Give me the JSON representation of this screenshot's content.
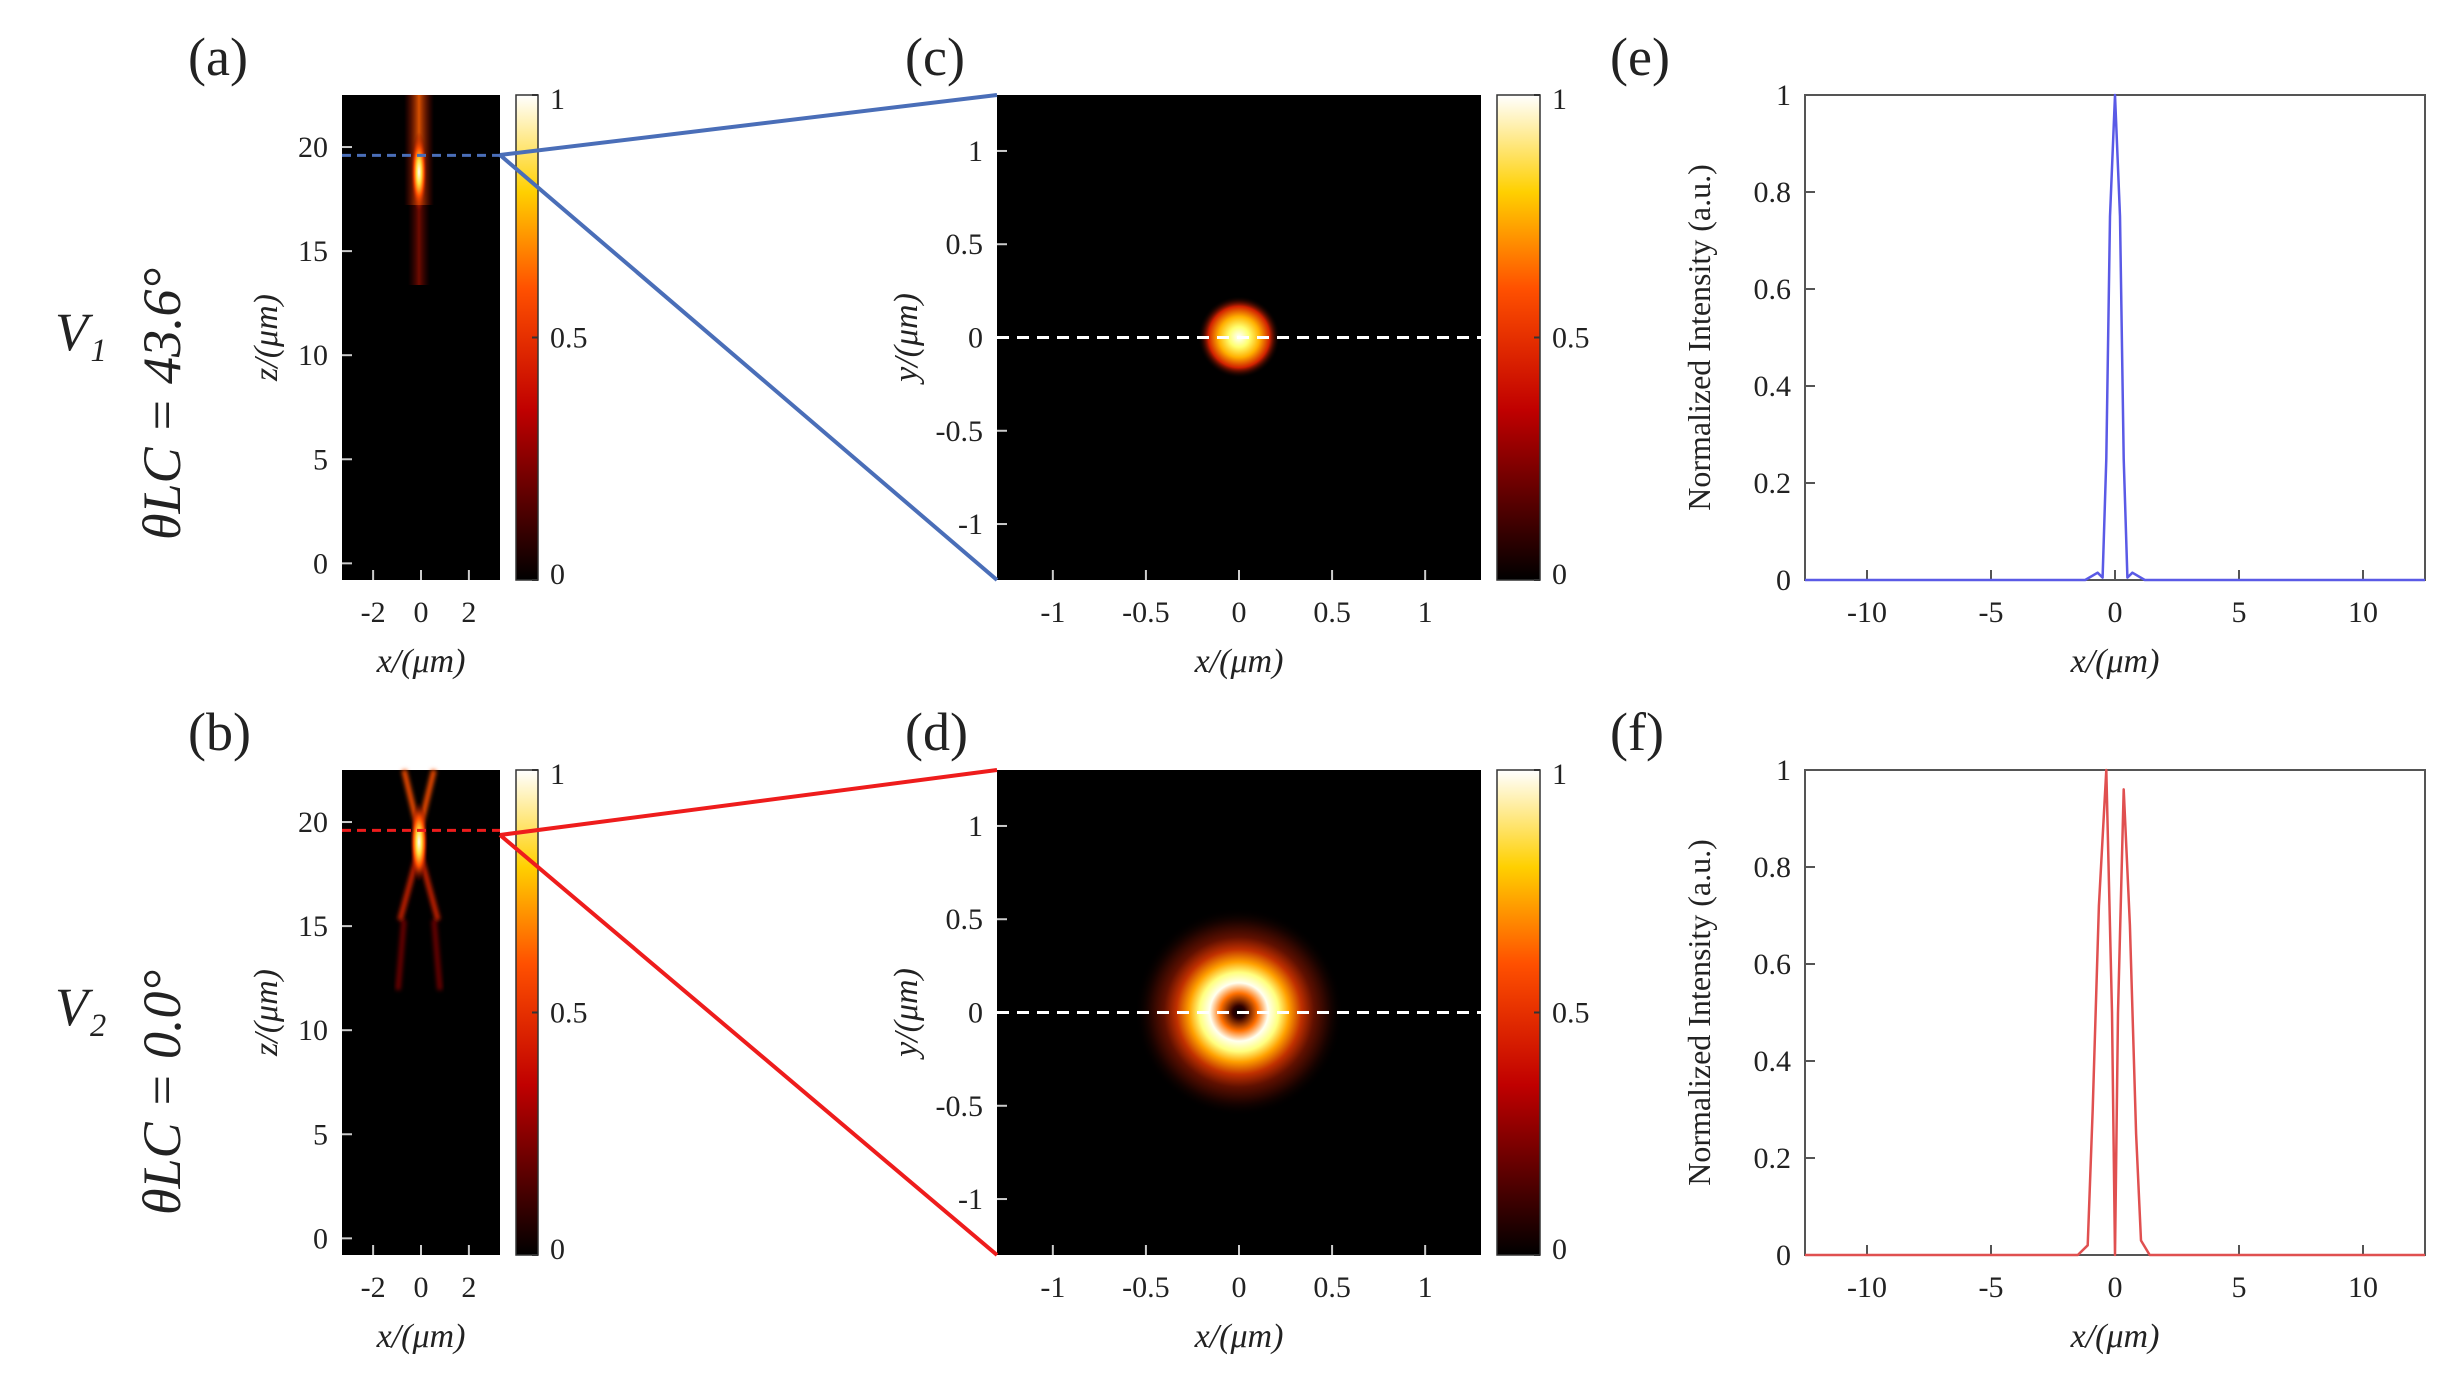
{
  "figure": {
    "rows": [
      {
        "label": "V₁",
        "theta": "θLC = 43.6°"
      },
      {
        "label": "V₂",
        "theta": "θLC = 0.0°"
      }
    ]
  },
  "chart_data": [
    {
      "id": "a",
      "type": "heatmap",
      "panel_label": "(a)",
      "content": "focused spot, propagation x-z plane",
      "xlabel": "x/(μm)",
      "ylabel": "z/(μm)",
      "xticks": [
        -2,
        0,
        2
      ],
      "yticks": [
        0,
        5,
        10,
        15,
        20
      ],
      "xlim": [
        -3.3,
        3.3
      ],
      "ylim": [
        -0.8,
        22.5
      ],
      "colorbar_ticks": [
        0,
        0.5,
        1
      ],
      "colorbar_range": [
        0,
        1
      ],
      "focal_plane_z": 19.6,
      "colormap": "hot",
      "cut_line_color": "#4a6eb8"
    },
    {
      "id": "b",
      "type": "heatmap",
      "panel_label": "(b)",
      "content": "focused ring, propagation x-z plane",
      "xlabel": "x/(μm)",
      "ylabel": "z/(μm)",
      "xticks": [
        -2,
        0,
        2
      ],
      "yticks": [
        0,
        5,
        10,
        15,
        20
      ],
      "xlim": [
        -3.3,
        3.3
      ],
      "ylim": [
        -0.8,
        22.5
      ],
      "colorbar_ticks": [
        0,
        0.5,
        1
      ],
      "colorbar_range": [
        0,
        1
      ],
      "focal_plane_z": 19.6,
      "colormap": "hot",
      "cut_line_color": "#ee1c1c"
    },
    {
      "id": "c",
      "type": "heatmap",
      "panel_label": "(c)",
      "content": "focal plane intensity: solid spot",
      "xlabel": "x/(μm)",
      "ylabel": "y/(μm)",
      "xticks": [
        -1,
        -0.5,
        0,
        0.5,
        1
      ],
      "yticks": [
        -1,
        -0.5,
        0,
        0.5,
        1
      ],
      "xlim": [
        -1.3,
        1.3
      ],
      "ylim": [
        -1.3,
        1.3
      ],
      "colorbar_ticks": [
        0,
        0.5,
        1
      ],
      "colorbar_range": [
        0,
        1
      ],
      "spot_radius_um": 0.1,
      "colormap": "hot"
    },
    {
      "id": "d",
      "type": "heatmap",
      "panel_label": "(d)",
      "content": "focal plane intensity: donut ring",
      "xlabel": "x/(μm)",
      "ylabel": "y/(μm)",
      "xticks": [
        -1,
        -0.5,
        0,
        0.5,
        1
      ],
      "yticks": [
        -1,
        -0.5,
        0,
        0.5,
        1
      ],
      "xlim": [
        -1.3,
        1.3
      ],
      "ylim": [
        -1.3,
        1.3
      ],
      "colorbar_ticks": [
        0,
        0.5,
        1
      ],
      "colorbar_range": [
        0,
        1
      ],
      "ring_radius_um": 0.16,
      "colormap": "hot"
    },
    {
      "id": "e",
      "type": "line",
      "panel_label": "(e)",
      "xlabel": "x/(μm)",
      "ylabel": "Normalized Intensity (a.u.)",
      "xticks": [
        -10,
        -5,
        0,
        5,
        10
      ],
      "yticks": [
        0,
        0.2,
        0.4,
        0.6,
        0.8,
        1
      ],
      "xlim": [
        -12.5,
        12.5
      ],
      "ylim": [
        0,
        1
      ],
      "series": [
        {
          "name": "V1 profile",
          "color": "#5a5ae6",
          "x": [
            -12.5,
            -1.2,
            -0.7,
            -0.5,
            -0.35,
            -0.2,
            0,
            0.2,
            0.35,
            0.5,
            0.7,
            1.2,
            12.5
          ],
          "values": [
            0,
            0,
            0.015,
            0.005,
            0.25,
            0.75,
            1,
            0.75,
            0.25,
            0.005,
            0.015,
            0,
            0
          ]
        }
      ]
    },
    {
      "id": "f",
      "type": "line",
      "panel_label": "(f)",
      "xlabel": "x/(μm)",
      "ylabel": "Normalized Intensity (a.u.)",
      "xticks": [
        -10,
        -5,
        0,
        5,
        10
      ],
      "yticks": [
        0,
        0.2,
        0.4,
        0.6,
        0.8,
        1
      ],
      "xlim": [
        -12.5,
        12.5
      ],
      "ylim": [
        0,
        1
      ],
      "series": [
        {
          "name": "V2 profile",
          "color": "#e05050",
          "x": [
            -12.5,
            -1.5,
            -1.1,
            -0.9,
            -0.65,
            -0.35,
            -0.12,
            0,
            0.12,
            0.35,
            0.6,
            0.85,
            1.05,
            1.4,
            12.5
          ],
          "values": [
            0,
            0,
            0.02,
            0.3,
            0.72,
            1,
            0.5,
            0,
            0.5,
            0.96,
            0.68,
            0.25,
            0.03,
            0,
            0
          ]
        }
      ]
    }
  ]
}
